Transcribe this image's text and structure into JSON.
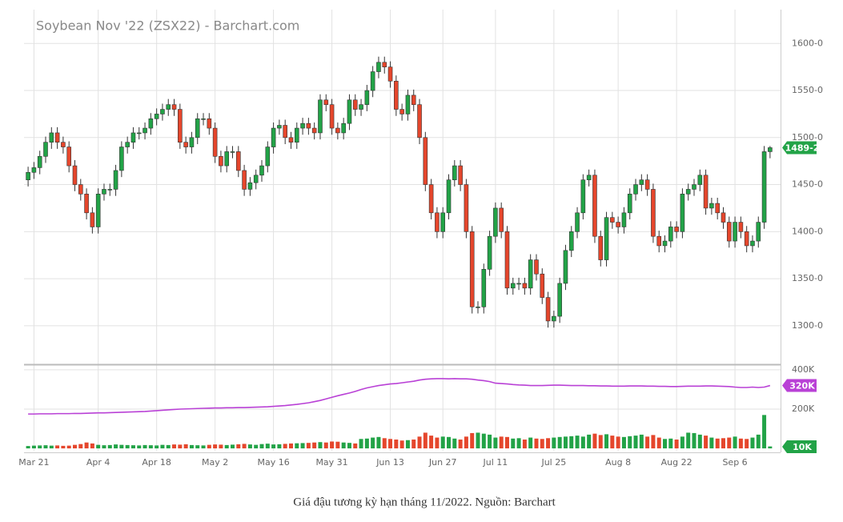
{
  "chart_data": {
    "type": "candlestick",
    "title": "Soybean Nov '22 (ZSX22) - Barchart.com",
    "up_color": "#22a347",
    "down_color": "#e5462c",
    "open": [
      1455,
      1463,
      1468,
      1480,
      1495,
      1505,
      1495,
      1490,
      1470,
      1450,
      1440,
      1420,
      1405,
      1440,
      1445,
      1445,
      1465,
      1490,
      1495,
      1505,
      1505,
      1510,
      1520,
      1525,
      1530,
      1535,
      1530,
      1495,
      1490,
      1500,
      1520,
      1520,
      1510,
      1480,
      1470,
      1485,
      1485,
      1465,
      1445,
      1452,
      1460,
      1470,
      1490,
      1510,
      1513,
      1500,
      1495,
      1510,
      1515,
      1510,
      1505,
      1540,
      1535,
      1510,
      1505,
      1515,
      1540,
      1530,
      1535,
      1550,
      1570,
      1580,
      1575,
      1560,
      1530,
      1525,
      1545,
      1535,
      1500,
      1450,
      1420,
      1400,
      1420,
      1455,
      1470,
      1450,
      1400,
      1320,
      1320,
      1360,
      1395,
      1425,
      1400,
      1340,
      1345,
      1345,
      1340,
      1370,
      1355,
      1330,
      1305,
      1310,
      1345,
      1380,
      1400,
      1420,
      1455,
      1460,
      1395,
      1370,
      1415,
      1410,
      1405,
      1420,
      1440,
      1450,
      1455,
      1445,
      1395,
      1385,
      1390,
      1405,
      1400,
      1440,
      1445,
      1450,
      1460,
      1425,
      1430,
      1420,
      1410,
      1390,
      1410,
      1400,
      1385,
      1390,
      1410,
      1485
    ],
    "high": [
      1469,
      1474,
      1486,
      1501,
      1511,
      1511,
      1501,
      1496,
      1476,
      1456,
      1446,
      1426,
      1446,
      1451,
      1451,
      1471,
      1496,
      1501,
      1511,
      1511,
      1516,
      1526,
      1531,
      1536,
      1541,
      1541,
      1536,
      1501,
      1506,
      1526,
      1526,
      1526,
      1516,
      1486,
      1491,
      1491,
      1491,
      1471,
      1458,
      1466,
      1476,
      1496,
      1516,
      1519,
      1519,
      1506,
      1516,
      1521,
      1521,
      1516,
      1546,
      1546,
      1541,
      1516,
      1521,
      1546,
      1546,
      1541,
      1556,
      1576,
      1586,
      1586,
      1581,
      1566,
      1536,
      1551,
      1551,
      1541,
      1506,
      1456,
      1426,
      1426,
      1461,
      1476,
      1476,
      1456,
      1406,
      1326,
      1366,
      1401,
      1431,
      1431,
      1406,
      1351,
      1351,
      1351,
      1376,
      1376,
      1361,
      1336,
      1316,
      1351,
      1386,
      1406,
      1426,
      1461,
      1466,
      1466,
      1401,
      1421,
      1421,
      1416,
      1426,
      1446,
      1456,
      1461,
      1461,
      1451,
      1401,
      1396,
      1411,
      1411,
      1446,
      1451,
      1456,
      1466,
      1466,
      1436,
      1436,
      1426,
      1416,
      1416,
      1416,
      1406,
      1396,
      1416,
      1491,
      1491
    ],
    "low": [
      1448,
      1456,
      1461,
      1473,
      1488,
      1488,
      1483,
      1463,
      1443,
      1433,
      1413,
      1398,
      1398,
      1433,
      1438,
      1438,
      1458,
      1483,
      1488,
      1498,
      1498,
      1503,
      1513,
      1518,
      1523,
      1523,
      1488,
      1483,
      1483,
      1493,
      1513,
      1503,
      1473,
      1463,
      1463,
      1478,
      1458,
      1438,
      1438,
      1445,
      1453,
      1463,
      1483,
      1503,
      1493,
      1488,
      1488,
      1503,
      1503,
      1498,
      1498,
      1528,
      1503,
      1498,
      1498,
      1508,
      1523,
      1523,
      1528,
      1543,
      1563,
      1568,
      1553,
      1523,
      1518,
      1518,
      1528,
      1493,
      1443,
      1413,
      1393,
      1393,
      1413,
      1448,
      1443,
      1393,
      1313,
      1313,
      1313,
      1353,
      1388,
      1393,
      1333,
      1333,
      1338,
      1333,
      1333,
      1348,
      1323,
      1298,
      1298,
      1303,
      1338,
      1373,
      1393,
      1413,
      1448,
      1388,
      1363,
      1363,
      1403,
      1398,
      1398,
      1413,
      1433,
      1443,
      1438,
      1388,
      1378,
      1378,
      1383,
      1393,
      1393,
      1433,
      1438,
      1443,
      1418,
      1418,
      1413,
      1403,
      1383,
      1383,
      1393,
      1378,
      1378,
      1383,
      1403,
      1478
    ],
    "close": [
      1463,
      1468,
      1480,
      1495,
      1505,
      1495,
      1490,
      1470,
      1450,
      1440,
      1420,
      1405,
      1440,
      1445,
      1445,
      1465,
      1490,
      1495,
      1505,
      1505,
      1510,
      1520,
      1525,
      1530,
      1535,
      1530,
      1495,
      1490,
      1500,
      1520,
      1520,
      1510,
      1480,
      1470,
      1485,
      1485,
      1465,
      1445,
      1452,
      1460,
      1470,
      1490,
      1510,
      1513,
      1500,
      1495,
      1510,
      1515,
      1510,
      1505,
      1540,
      1535,
      1510,
      1505,
      1515,
      1540,
      1530,
      1535,
      1550,
      1570,
      1580,
      1575,
      1560,
      1530,
      1525,
      1545,
      1535,
      1500,
      1450,
      1420,
      1400,
      1420,
      1455,
      1470,
      1450,
      1400,
      1320,
      1320,
      1360,
      1395,
      1425,
      1400,
      1340,
      1345,
      1345,
      1340,
      1370,
      1355,
      1330,
      1305,
      1310,
      1345,
      1380,
      1400,
      1420,
      1455,
      1460,
      1395,
      1370,
      1415,
      1410,
      1405,
      1420,
      1440,
      1450,
      1455,
      1445,
      1395,
      1385,
      1390,
      1405,
      1400,
      1440,
      1445,
      1450,
      1460,
      1425,
      1430,
      1420,
      1410,
      1390,
      1410,
      1400,
      1385,
      1390,
      1410,
      1485,
      1489.25
    ],
    "close_label": "1489-2",
    "xlim": [
      -0.7,
      128.8
    ],
    "xticks": [
      {
        "value": 1,
        "label": "Mar 21"
      },
      {
        "value": 12,
        "label": "Apr 4"
      },
      {
        "value": 22,
        "label": "Apr 18"
      },
      {
        "value": 32,
        "label": "May 2"
      },
      {
        "value": 42,
        "label": "May 16"
      },
      {
        "value": 52,
        "label": "May 31"
      },
      {
        "value": 62,
        "label": "Jun 13"
      },
      {
        "value": 71,
        "label": "Jun 27"
      },
      {
        "value": 80,
        "label": "Jul 11"
      },
      {
        "value": 90,
        "label": "Jul 25"
      },
      {
        "value": 101,
        "label": "Aug 8"
      },
      {
        "value": 111,
        "label": "Aug 22"
      },
      {
        "value": 121,
        "label": "Sep 6"
      }
    ],
    "ylim": [
      1259,
      1636
    ],
    "yticks": [
      {
        "value": 1300,
        "label": "1300-0"
      },
      {
        "value": 1350,
        "label": "1350-0"
      },
      {
        "value": 1400,
        "label": "1400-0"
      },
      {
        "value": 1450,
        "label": "1450-0"
      },
      {
        "value": 1500,
        "label": "1500-0"
      },
      {
        "value": 1550,
        "label": "1550-0"
      },
      {
        "value": 1600,
        "label": "1600-0"
      }
    ],
    "grid": true,
    "volume_panel": {
      "volume": [
        12,
        14,
        15,
        16,
        14,
        15,
        13,
        14,
        18,
        22,
        30,
        25,
        18,
        16,
        17,
        20,
        18,
        17,
        16,
        15,
        17,
        16,
        15,
        18,
        17,
        20,
        19,
        21,
        17,
        16,
        15,
        18,
        20,
        19,
        17,
        19,
        21,
        23,
        20,
        18,
        22,
        24,
        20,
        21,
        23,
        25,
        26,
        27,
        28,
        30,
        32,
        30,
        35,
        34,
        30,
        28,
        25,
        48,
        50,
        55,
        58,
        52,
        48,
        45,
        40,
        42,
        45,
        60,
        80,
        65,
        55,
        60,
        58,
        50,
        45,
        60,
        78,
        80,
        75,
        70,
        55,
        60,
        58,
        50,
        52,
        45,
        55,
        50,
        48,
        52,
        55,
        58,
        60,
        62,
        65,
        60,
        70,
        75,
        68,
        72,
        65,
        60,
        58,
        62,
        65,
        70,
        60,
        68,
        55,
        48,
        50,
        45,
        60,
        80,
        78,
        70,
        65,
        55,
        50,
        52,
        55,
        60,
        50,
        48,
        55,
        70,
        170,
        10
      ],
      "open_interest": [
        175,
        175,
        176,
        176,
        176,
        177,
        177,
        177,
        178,
        178,
        179,
        180,
        181,
        181,
        182,
        183,
        184,
        185,
        186,
        187,
        188,
        190,
        192,
        194,
        196,
        198,
        200,
        201,
        202,
        203,
        204,
        205,
        206,
        206,
        207,
        207,
        208,
        208,
        209,
        210,
        211,
        212,
        214,
        216,
        218,
        221,
        224,
        228,
        232,
        238,
        244,
        252,
        260,
        268,
        275,
        282,
        290,
        300,
        308,
        314,
        320,
        324,
        328,
        330,
        334,
        338,
        342,
        348,
        352,
        354,
        355,
        355,
        354,
        355,
        354,
        354,
        352,
        348,
        345,
        340,
        332,
        330,
        328,
        325,
        323,
        322,
        320,
        320,
        320,
        321,
        322,
        322,
        321,
        320,
        320,
        320,
        319,
        319,
        318,
        318,
        317,
        317,
        317,
        318,
        318,
        318,
        317,
        317,
        316,
        316,
        315,
        315,
        316,
        317,
        317,
        317,
        318,
        318,
        317,
        316,
        315,
        312,
        310,
        310,
        312,
        310,
        312,
        320
      ],
      "oi_color": "#b941d6",
      "volume_label": "10K",
      "oi_label": "320K",
      "ylim": [
        -12,
        416
      ],
      "yticks": [
        {
          "value": 200,
          "label": "200K"
        },
        {
          "value": 400,
          "label": "400K"
        }
      ]
    }
  },
  "caption": "Giá đậu tương kỳ hạn tháng 11/2022. Nguồn: Barchart"
}
